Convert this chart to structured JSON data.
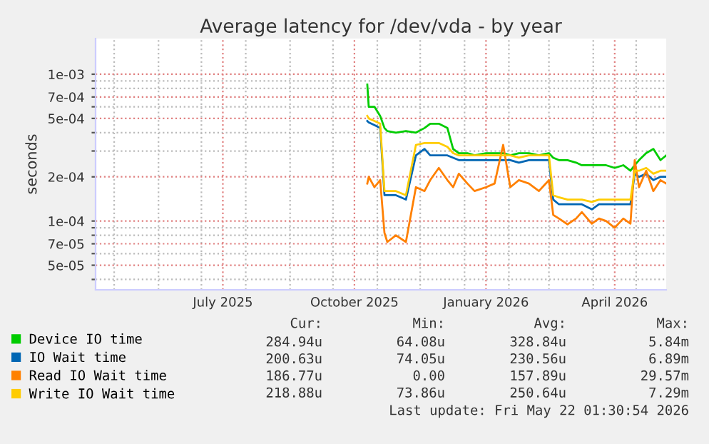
{
  "chart_data": {
    "type": "line",
    "title": "Average latency for /dev/vda - by year",
    "ylabel": "seconds",
    "log": true,
    "grid": true,
    "legend": "bottom",
    "xlim": [
      "2025-04-18",
      "2026-05-22"
    ],
    "ylim": [
      3.4e-05,
      0.00175
    ],
    "xticks": [
      {
        "value": "2025-05-01",
        "label": null
      },
      {
        "value": "2025-06-01",
        "label": null
      },
      {
        "value": "2025-07-01",
        "label": null
      },
      {
        "value": "2025-07-16",
        "label": "July 2025"
      },
      {
        "value": "2025-08-01",
        "label": null
      },
      {
        "value": "2025-09-01",
        "label": null
      },
      {
        "value": "2025-10-01",
        "label": null
      },
      {
        "value": "2025-10-16",
        "label": "October 2025"
      },
      {
        "value": "2025-11-01",
        "label": null
      },
      {
        "value": "2025-12-01",
        "label": null
      },
      {
        "value": "2026-01-01",
        "label": null
      },
      {
        "value": "2026-01-16",
        "label": "January 2026"
      },
      {
        "value": "2026-02-01",
        "label": null
      },
      {
        "value": "2026-03-01",
        "label": null
      },
      {
        "value": "2026-04-01",
        "label": null
      },
      {
        "value": "2026-04-16",
        "label": "April 2026"
      },
      {
        "value": "2026-05-01",
        "label": null
      }
    ],
    "yticks": [
      {
        "value": 4e-05,
        "label": null
      },
      {
        "value": 5e-05,
        "label": "5e-05"
      },
      {
        "value": 6e-05,
        "label": null
      },
      {
        "value": 7e-05,
        "label": "7e-05"
      },
      {
        "value": 8e-05,
        "label": null
      },
      {
        "value": 9e-05,
        "label": null
      },
      {
        "value": 0.0001,
        "label": "1e-04"
      },
      {
        "value": 0.0002,
        "label": "2e-04"
      },
      {
        "value": 0.0003,
        "label": null
      },
      {
        "value": 0.0004,
        "label": null
      },
      {
        "value": 0.0005,
        "label": "5e-04"
      },
      {
        "value": 0.0006,
        "label": null
      },
      {
        "value": 0.0007,
        "label": "7e-04"
      },
      {
        "value": 0.0008,
        "label": null
      },
      {
        "value": 0.0009,
        "label": null
      },
      {
        "value": 0.001,
        "label": "1e-03"
      }
    ],
    "x": [
      "2025-10-25",
      "2025-10-26",
      "2025-10-30",
      "2025-11-03",
      "2025-11-06",
      "2025-11-08",
      "2025-11-14",
      "2025-11-21",
      "2025-11-28",
      "2025-12-04",
      "2025-12-08",
      "2025-12-14",
      "2025-12-20",
      "2025-12-24",
      "2025-12-28",
      "2026-01-03",
      "2026-01-08",
      "2026-01-16",
      "2026-01-22",
      "2026-01-28",
      "2026-02-02",
      "2026-02-08",
      "2026-02-15",
      "2026-02-22",
      "2026-03-01",
      "2026-03-04",
      "2026-03-08",
      "2026-03-14",
      "2026-03-20",
      "2026-03-24",
      "2026-03-31",
      "2026-04-05",
      "2026-04-10",
      "2026-04-16",
      "2026-04-22",
      "2026-04-27",
      "2026-04-30",
      "2026-05-03",
      "2026-05-08",
      "2026-05-13",
      "2026-05-18",
      "2026-05-22"
    ],
    "series": [
      {
        "name": "Device IO time",
        "color": "#00cc00",
        "values": [
          0.00085,
          0.0006,
          0.0006,
          0.00052,
          0.00043,
          0.00041,
          0.0004,
          0.00041,
          0.0004,
          0.00043,
          0.00046,
          0.00046,
          0.00043,
          0.00031,
          0.00029,
          0.00029,
          0.00028,
          0.00029,
          0.00029,
          0.00029,
          0.00028,
          0.00029,
          0.00029,
          0.00028,
          0.00029,
          0.00027,
          0.00026,
          0.00026,
          0.00025,
          0.00024,
          0.00024,
          0.00024,
          0.00024,
          0.00023,
          0.00024,
          0.00022,
          0.00024,
          0.00026,
          0.00029,
          0.00031,
          0.00026,
          0.00028
        ]
      },
      {
        "name": "IO Wait time",
        "color": "#0066b3",
        "values": [
          0.00048,
          0.00047,
          0.00045,
          0.00043,
          0.00015,
          0.00015,
          0.00015,
          0.00014,
          0.00028,
          0.00031,
          0.00028,
          0.00028,
          0.00028,
          0.00027,
          0.00026,
          0.00026,
          0.00026,
          0.00026,
          0.00026,
          0.00026,
          0.00026,
          0.00025,
          0.00026,
          0.00026,
          0.00026,
          0.00014,
          0.00013,
          0.00013,
          0.00013,
          0.00013,
          0.00012,
          0.00013,
          0.00013,
          0.00013,
          0.00013,
          0.00013,
          0.00021,
          0.0002,
          0.00021,
          0.00019,
          0.0002,
          0.0002
        ]
      },
      {
        "name": "Read IO Wait time",
        "color": "#ff8000",
        "values": [
          0.00018,
          0.0002,
          0.00017,
          0.00019,
          8.3e-05,
          7.2e-05,
          8e-05,
          7.2e-05,
          0.00017,
          0.00016,
          0.00019,
          0.00023,
          0.00019,
          0.00017,
          0.00021,
          0.00018,
          0.00016,
          0.00017,
          0.00018,
          0.00033,
          0.00017,
          0.00019,
          0.00018,
          0.00016,
          0.00019,
          0.00011,
          0.000104,
          9.5e-05,
          0.000104,
          0.000115,
          9.6e-05,
          0.000104,
          0.0001,
          9e-05,
          0.000104,
          9.6e-05,
          0.00026,
          0.00017,
          0.00022,
          0.00016,
          0.00019,
          0.00018
        ]
      },
      {
        "name": "Write IO Wait time",
        "color": "#ffcc00",
        "values": [
          0.00052,
          0.0005,
          0.00048,
          0.00046,
          0.00016,
          0.00016,
          0.00016,
          0.00015,
          0.00033,
          0.00034,
          0.00034,
          0.00034,
          0.00032,
          0.00029,
          0.00028,
          0.00028,
          0.00028,
          0.00028,
          0.00028,
          0.00028,
          0.00028,
          0.00027,
          0.00028,
          0.00028,
          0.00028,
          0.00015,
          0.000145,
          0.00014,
          0.00014,
          0.00014,
          0.000135,
          0.00014,
          0.00014,
          0.00014,
          0.00014,
          0.00014,
          0.00022,
          0.00022,
          0.00023,
          0.00021,
          0.00022,
          0.00022
        ]
      }
    ],
    "annotations": [
      "Cur:",
      "Min:",
      "Avg:",
      "Max:",
      "284.94u",
      "64.08u",
      "328.84u",
      "5.84m",
      "200.63u",
      "74.05u",
      "230.56u",
      "6.89m",
      "186.77u",
      "0.00",
      "157.89u",
      "29.57m",
      "218.88u",
      "73.86u",
      "250.64u",
      "7.29m",
      "Last update: Fri May 22 01:30:54 2026"
    ]
  }
}
